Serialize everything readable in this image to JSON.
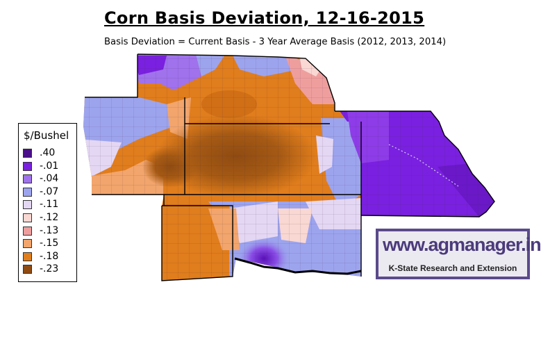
{
  "title": "Corn Basis Deviation, 12-16-2015",
  "subtitle": "Basis Deviation = Current Basis - 3 Year Average Basis (2012, 2013, 2014)",
  "legend": {
    "title": "$/Bushel",
    "items": [
      {
        "label": ".40",
        "color": "#4b0f8a"
      },
      {
        "label": "-.01",
        "color": "#7a20e0"
      },
      {
        "label": "-.04",
        "color": "#a072ec"
      },
      {
        "label": "-.07",
        "color": "#9da4ee"
      },
      {
        "label": "-.11",
        "color": "#e4d7f3"
      },
      {
        "label": "-.12",
        "color": "#f9d7d2"
      },
      {
        "label": "-.13",
        "color": "#ef9e9e"
      },
      {
        "label": "-.15",
        "color": "#f2a56c"
      },
      {
        "label": "-.18",
        "color": "#e07d1c"
      },
      {
        "label": "-.23",
        "color": "#8f4b12"
      }
    ]
  },
  "logo": {
    "url": "www.agmanager.info",
    "org": "K-State Research and Extension"
  },
  "colors": {
    "deep_purple": "#4b0f8a",
    "purple": "#7a20e0",
    "light_purple": "#a072ec",
    "periwinkle": "#9da4ee",
    "lavender": "#e4d7f3",
    "pale_pink": "#f9d7d2",
    "pink": "#ef9e9e",
    "light_orange": "#f2a56c",
    "orange": "#e07d1c",
    "brown": "#8f4b12",
    "logo_border": "#5b4a8b"
  }
}
